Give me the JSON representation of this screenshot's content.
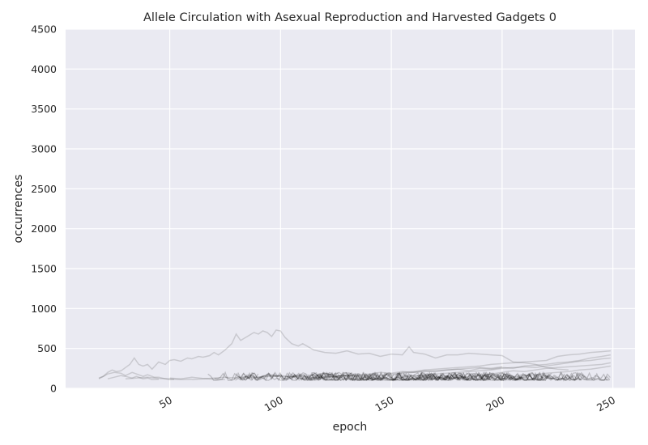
{
  "chart_data": {
    "type": "line",
    "title": "Allele Circulation with Asexual Reproduction and Harvested Gadgets 0",
    "xlabel": "epoch",
    "ylabel": "occurrences",
    "xlim": [
      3,
      260
    ],
    "ylim": [
      0,
      4500
    ],
    "xticks": [
      50,
      100,
      150,
      200,
      250
    ],
    "yticks": [
      0,
      500,
      1000,
      1500,
      2000,
      2500,
      3000,
      3500,
      4000,
      4500
    ],
    "grid": true,
    "style": {
      "background": "#EAEAF2",
      "grid_color": "#FFFFFF",
      "line_color": "#000000",
      "line_alpha": 0.14
    },
    "series": [
      {
        "x": [
          18,
          20,
          22,
          24,
          26,
          28,
          30,
          32,
          34,
          36,
          38,
          40,
          42,
          45,
          48,
          50,
          52,
          55,
          58,
          60,
          63,
          65,
          68,
          70,
          72,
          75,
          78,
          80,
          82,
          85,
          88,
          90,
          92,
          94,
          96,
          98,
          100,
          102,
          105,
          108,
          110,
          115,
          120,
          125,
          130,
          135,
          140,
          145,
          150,
          155,
          158,
          160,
          165,
          170,
          175,
          180,
          185,
          190,
          195,
          200,
          205,
          210,
          215,
          220,
          225,
          230
        ],
        "values": [
          120,
          150,
          200,
          230,
          210,
          220,
          260,
          300,
          380,
          300,
          280,
          300,
          240,
          330,
          300,
          350,
          360,
          340,
          380,
          370,
          400,
          390,
          410,
          450,
          420,
          480,
          560,
          680,
          600,
          650,
          700,
          680,
          720,
          700,
          650,
          730,
          720,
          640,
          560,
          530,
          560,
          480,
          450,
          440,
          470,
          430,
          440,
          400,
          430,
          420,
          520,
          450,
          430,
          380,
          420,
          420,
          440,
          430,
          420,
          410,
          330,
          320,
          300,
          260,
          240,
          230
        ]
      },
      {
        "x": [
          18,
          20,
          22,
          25,
          28,
          30,
          33,
          35,
          38,
          40,
          43,
          45,
          48,
          50,
          52
        ],
        "values": [
          130,
          150,
          180,
          200,
          190,
          160,
          200,
          180,
          150,
          170,
          140,
          140,
          120,
          110,
          115
        ]
      },
      {
        "x": [
          22,
          25,
          28,
          30,
          33,
          35,
          38,
          40,
          42,
          45
        ],
        "values": [
          120,
          140,
          160,
          150,
          130,
          150,
          120,
          130,
          110,
          115
        ]
      },
      {
        "x": [
          30,
          35,
          40,
          45,
          50,
          55,
          60
        ],
        "values": [
          120,
          130,
          140,
          125,
          120,
          110,
          115
        ]
      },
      {
        "x": [
          60,
          65,
          70,
          75,
          80,
          85,
          90,
          95,
          100,
          105,
          110,
          115,
          120,
          125,
          130,
          135,
          140,
          145,
          150,
          155,
          160,
          165,
          170,
          175,
          180,
          185,
          190,
          195,
          200,
          205,
          210,
          215,
          220,
          225,
          230,
          235,
          240,
          245,
          249
        ],
        "values": [
          110,
          120,
          130,
          140,
          130,
          150,
          140,
          160,
          150,
          140,
          150,
          130,
          140,
          150,
          160,
          150,
          170,
          160,
          180,
          190,
          200,
          210,
          220,
          230,
          240,
          220,
          250,
          240,
          260,
          250,
          280,
          290,
          300,
          320,
          330,
          350,
          380,
          400,
          420
        ]
      },
      {
        "x": [
          150,
          155,
          160,
          165,
          170,
          175,
          180,
          185,
          190,
          195,
          200,
          205,
          210,
          215,
          220,
          225,
          230,
          235,
          240,
          245,
          249
        ],
        "values": [
          160,
          200,
          210,
          230,
          240,
          250,
          260,
          270,
          280,
          300,
          310,
          320,
          330,
          340,
          350,
          400,
          420,
          430,
          450,
          460,
          470
        ]
      },
      {
        "x": [
          160,
          165,
          170,
          175,
          180,
          185,
          190,
          195,
          200,
          205,
          210,
          215,
          220,
          225,
          230,
          235,
          240,
          245,
          249
        ],
        "values": [
          150,
          170,
          180,
          190,
          200,
          210,
          220,
          230,
          250,
          260,
          270,
          260,
          280,
          300,
          320,
          340,
          350,
          370,
          380
        ]
      },
      {
        "x": [
          180,
          185,
          190,
          195,
          200,
          205,
          210,
          215,
          220,
          225,
          230,
          235,
          240,
          245,
          249
        ],
        "values": [
          130,
          150,
          160,
          180,
          200,
          220,
          210,
          230,
          250,
          260,
          270,
          280,
          290,
          300,
          320
        ]
      },
      {
        "x": [
          200,
          205,
          210,
          215,
          220,
          225,
          230,
          235,
          240,
          245,
          249
        ],
        "values": [
          120,
          140,
          160,
          170,
          190,
          200,
          210,
          230,
          240,
          260,
          280
        ]
      },
      {
        "x": [
          110,
          115,
          120,
          125,
          130,
          135,
          140,
          145,
          150,
          155,
          160,
          165,
          170,
          175,
          180,
          185,
          190,
          195,
          200
        ],
        "values": [
          120,
          130,
          140,
          150,
          160,
          170,
          180,
          200,
          190,
          210,
          200,
          220,
          210,
          230,
          240,
          250,
          260,
          250,
          270
        ]
      },
      {
        "x": [
          85,
          90,
          95,
          100,
          105,
          110,
          115,
          120,
          125,
          130,
          135,
          140
        ],
        "values": [
          130,
          140,
          150,
          160,
          150,
          170,
          160,
          150,
          140,
          130,
          120,
          110
        ]
      },
      {
        "x": [
          50,
          55,
          60,
          65,
          70,
          75
        ],
        "values": [
          130,
          120,
          140,
          125,
          115,
          110
        ]
      }
    ],
    "bulk_band": {
      "note": "Dense cluster of many low-frequency allele trajectories near the minimum count",
      "x_start": 65,
      "x_end": 249,
      "min_value": 100,
      "max_value": 200
    }
  }
}
